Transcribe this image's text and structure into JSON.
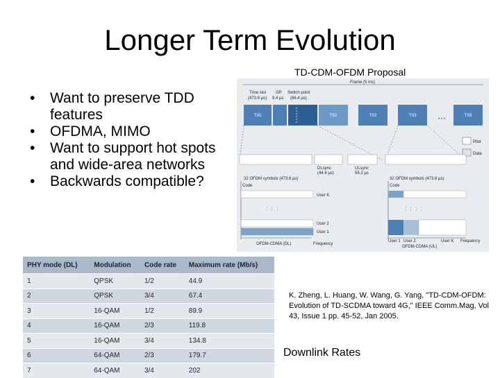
{
  "slide": {
    "title": "Longer Term Evolution",
    "bullets": [
      "Want to preserve TDD features",
      "OFDMA, MIMO",
      "Want to support hot spots and wide-area networks",
      "Backwards compatible?"
    ],
    "figure_caption": "TD-CDM-OFDM Proposal",
    "reference": "K. Zheng, L. Huang, W. Wang, G. Yang, \"TD-CDM-OFDM: Evolution of TD-SCDMA toward 4G,\" IEEE Comm.Mag, Vol 43, Issue 1 pp. 45-52, Jan 2005.",
    "table_caption": "Downlink Rates"
  },
  "figure": {
    "frame": "Frame (5 ms)",
    "time_slot": "Time slot",
    "time_slot_val": "(473.6 µs)",
    "gp": "GP",
    "gp_val": "9.4 µs",
    "switch_point": "Switch point",
    "switch_point_val": "(66.4 µs)",
    "slots": [
      "TS0",
      "TS1",
      "TS2",
      "TS3",
      "TS9"
    ],
    "dots": "• • •",
    "legend_pilot": "Pilot",
    "legend_data": "Data",
    "ofdm_left": "32 OFDM symbols (473.6 µs)",
    "dlsync": "DLsync",
    "dlsync_val": "(44.4 µs)",
    "ulsync": "ULsync",
    "ulsync_val": "59.2 µs",
    "ofdm_right": "32 OFDM symbols (473.6 µs)",
    "code": "Code",
    "user_k": "User K",
    "user_2": "User 2",
    "user_1": "User 1",
    "dl_label": "OFDM-CDMA (DL)",
    "ul_label": "OFDM-CDMA (UL)",
    "frequency": "Frequency",
    "ul_user1": "User 1",
    "ul_user2": "User 2",
    "ul_userk": "User K"
  },
  "table": {
    "headers": [
      "PHY mode (DL)",
      "Modulation",
      "Code rate",
      "Maximum rate (Mb/s)"
    ],
    "rows": [
      [
        "1",
        "QPSK",
        "1/2",
        "44.9"
      ],
      [
        "2",
        "QPSK",
        "3/4",
        "67.4"
      ],
      [
        "3",
        "16-QAM",
        "1/2",
        "89.9"
      ],
      [
        "4",
        "16-QAM",
        "2/3",
        "119.8"
      ],
      [
        "5",
        "16-QAM",
        "3/4",
        "134.8"
      ],
      [
        "6",
        "64-QAM",
        "2/3",
        "179.7"
      ],
      [
        "7",
        "64-QAM",
        "3/4",
        "202"
      ]
    ]
  },
  "colors": {
    "figure_bg": "#e8ecef",
    "slot_blue": "#4f80b5",
    "slot_dark": "#2e5f92",
    "table_header": "#a9b9c7"
  }
}
